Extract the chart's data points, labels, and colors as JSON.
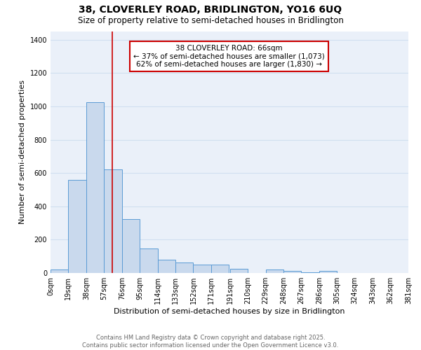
{
  "title": "38, CLOVERLEY ROAD, BRIDLINGTON, YO16 6UQ",
  "subtitle": "Size of property relative to semi-detached houses in Bridlington",
  "xlabel": "Distribution of semi-detached houses by size in Bridlington",
  "ylabel": "Number of semi-detached properties",
  "bar_values": [
    20,
    560,
    1025,
    620,
    325,
    148,
    80,
    65,
    52,
    52,
    25,
    0,
    22,
    13,
    5,
    13,
    0,
    0,
    0,
    0
  ],
  "bin_edges": [
    0,
    19,
    38,
    57,
    76,
    95,
    114,
    133,
    152,
    171,
    191,
    210,
    229,
    248,
    267,
    286,
    305,
    324,
    343,
    362,
    381
  ],
  "bin_labels": [
    "0sqm",
    "19sqm",
    "38sqm",
    "57sqm",
    "76sqm",
    "95sqm",
    "114sqm",
    "133sqm",
    "152sqm",
    "171sqm",
    "191sqm",
    "210sqm",
    "229sqm",
    "248sqm",
    "267sqm",
    "286sqm",
    "305sqm",
    "324sqm",
    "343sqm",
    "362sqm",
    "381sqm"
  ],
  "property_size": 66,
  "property_label": "38 CLOVERLEY ROAD: 66sqm",
  "pct_smaller": 37,
  "n_smaller": 1073,
  "pct_larger": 62,
  "n_larger": 1830,
  "bar_color": "#c9d9ed",
  "bar_edge_color": "#5b9bd5",
  "vline_color": "#cc0000",
  "annotation_box_color": "#cc0000",
  "grid_color": "#d0dff0",
  "background_color": "#eaf0f9",
  "ylim": [
    0,
    1450
  ],
  "yticks": [
    0,
    200,
    400,
    600,
    800,
    1000,
    1200,
    1400
  ],
  "footer_text": "Contains HM Land Registry data © Crown copyright and database right 2025.\nContains public sector information licensed under the Open Government Licence v3.0.",
  "title_fontsize": 10,
  "subtitle_fontsize": 8.5,
  "axis_label_fontsize": 8,
  "tick_fontsize": 7,
  "annotation_fontsize": 7.5,
  "footer_fontsize": 6
}
